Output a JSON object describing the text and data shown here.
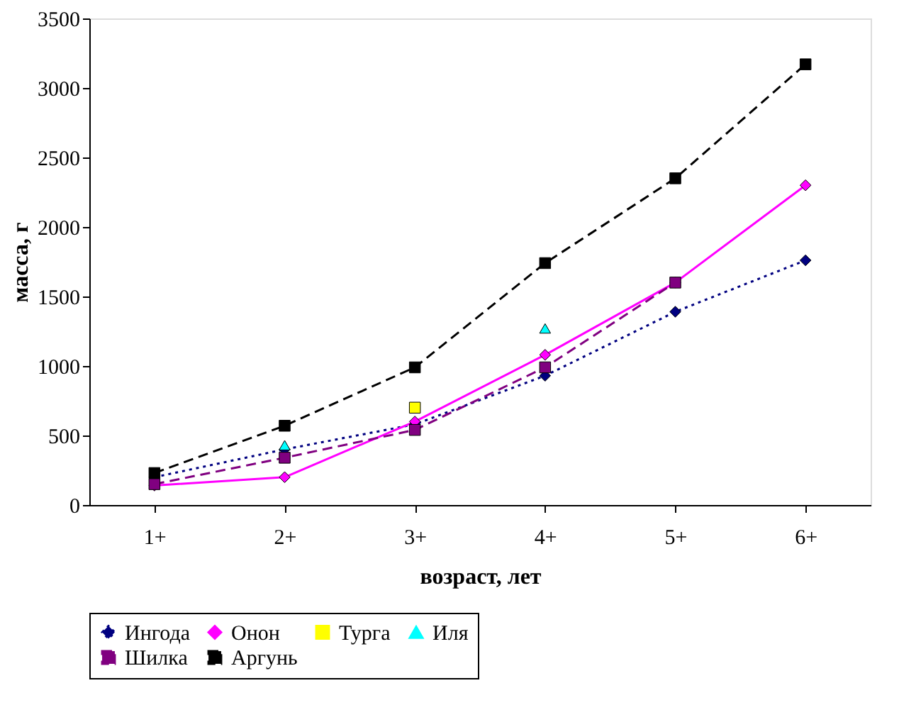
{
  "chart_data": {
    "type": "line",
    "xlabel": "возраст, лет",
    "ylabel": "масса, г",
    "categories": [
      "1+",
      "2+",
      "3+",
      "4+",
      "5+",
      "6+"
    ],
    "ylim": [
      0,
      3500
    ],
    "yticks": [
      0,
      500,
      1000,
      1500,
      2000,
      2500,
      3000,
      3500
    ],
    "grid": false,
    "legend": "bottom",
    "series": [
      {
        "name": "Ингода",
        "color": "#000080",
        "marker": "diamond",
        "line_style": "dotted",
        "values": [
          200,
          400,
          580,
          930,
          1390,
          1760
        ]
      },
      {
        "name": "Онон",
        "color": "#ff00ff",
        "marker": "diamond",
        "line_style": "solid",
        "values": [
          140,
          200,
          600,
          1080,
          1600,
          2300
        ]
      },
      {
        "name": "Турга",
        "type": "scatter",
        "color": "#ffff00",
        "marker": "square",
        "values": [
          null,
          null,
          700,
          null,
          null,
          null
        ]
      },
      {
        "name": "Иля",
        "type": "scatter",
        "color": "#00ffff",
        "marker": "triangle",
        "values": [
          null,
          430,
          null,
          1270,
          null,
          null
        ]
      },
      {
        "name": "Шилка",
        "color": "#800080",
        "marker": "square",
        "line_style": "dashed",
        "values": [
          150,
          340,
          540,
          990,
          1600,
          null
        ]
      },
      {
        "name": "Аргунь",
        "color": "#000000",
        "marker": "square",
        "line_style": "dashed",
        "values": [
          230,
          570,
          990,
          1740,
          2350,
          3170
        ]
      }
    ]
  }
}
